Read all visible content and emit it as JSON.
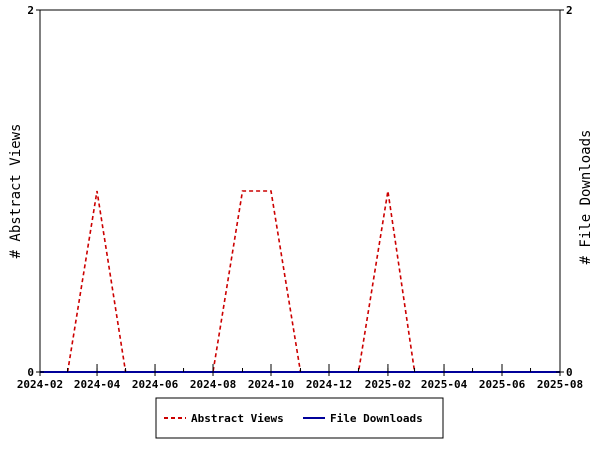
{
  "chart_data": {
    "type": "line",
    "title": "",
    "x_ticks": [
      "2024-02",
      "2024-04",
      "2024-06",
      "2024-08",
      "2024-10",
      "2024-12",
      "2025-02",
      "2025-04",
      "2025-06",
      "2025-08"
    ],
    "xlim": [
      "2024-02-01",
      "2025-08-01"
    ],
    "ylabel_left": "# Abstract Views",
    "ylabel_right": "# File Downloads",
    "ylim_left": [
      0,
      2
    ],
    "ylim_right": [
      0,
      2
    ],
    "y_ticks_left": [
      "0",
      "2"
    ],
    "y_ticks_right": [
      "0",
      "2"
    ],
    "grid": false,
    "legend_position": "bottom",
    "series": [
      {
        "name": "Abstract Views",
        "axis": "left",
        "color": "#cc0000",
        "style": "dashed",
        "points": [
          {
            "x": "2024-03-01",
            "y": 0
          },
          {
            "x": "2024-04-01",
            "y": 1
          },
          {
            "x": "2024-05-01",
            "y": 0
          },
          {
            "x": "2024-08-01",
            "y": 0
          },
          {
            "x": "2024-09-01",
            "y": 1
          },
          {
            "x": "2024-10-01",
            "y": 1
          },
          {
            "x": "2024-11-01",
            "y": 0
          },
          {
            "x": "2025-01-01",
            "y": 0
          },
          {
            "x": "2025-02-01",
            "y": 1
          },
          {
            "x": "2025-03-01",
            "y": 0
          }
        ]
      },
      {
        "name": "File Downloads",
        "axis": "right",
        "color": "#000099",
        "style": "solid",
        "points": [
          {
            "x": "2024-02-01",
            "y": 0
          },
          {
            "x": "2025-08-01",
            "y": 0
          }
        ]
      }
    ]
  }
}
